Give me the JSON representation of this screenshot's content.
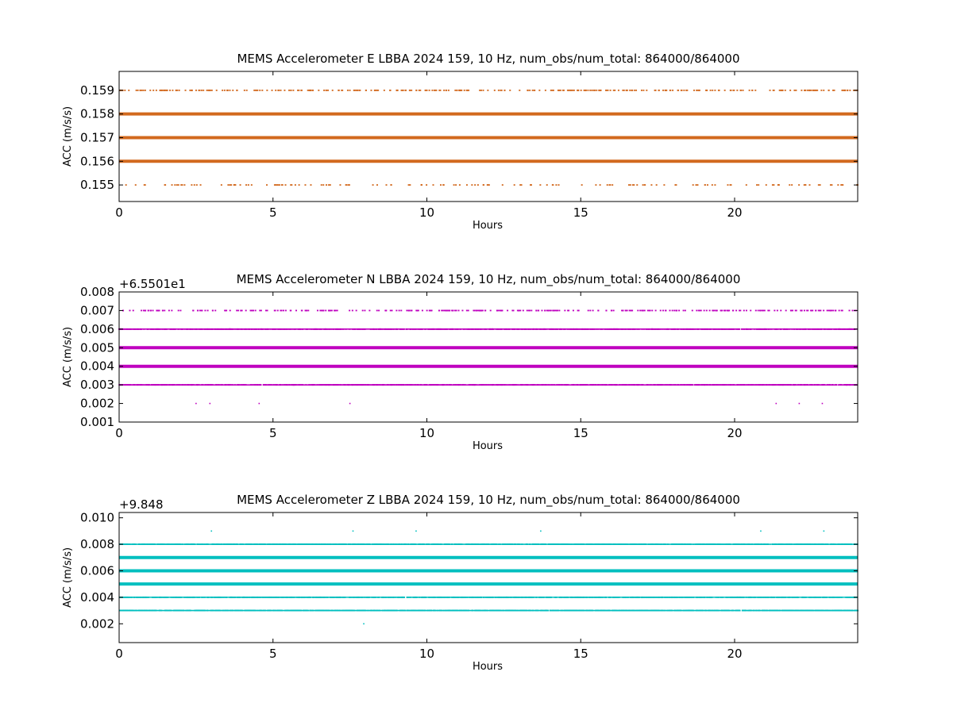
{
  "figure": {
    "background": "#ffffff"
  },
  "chart_data": [
    {
      "type": "scatter",
      "title": "MEMS Accelerometer E LBBA 2024 159, 10 Hz, num_obs/num_total: 864000/864000",
      "xlabel": "Hours",
      "ylabel": "ACC (m/s/s)",
      "offset_text": "",
      "xlim": [
        0,
        24
      ],
      "ylim": [
        0.1543,
        0.1598
      ],
      "xticks": [
        0,
        5,
        10,
        15,
        20
      ],
      "xtick_labels": [
        "0",
        "5",
        "10",
        "15",
        "20"
      ],
      "yticks": [
        0.155,
        0.156,
        0.157,
        0.158,
        0.159
      ],
      "ytick_labels": [
        "0.155",
        "0.156",
        "0.157",
        "0.158",
        "0.159"
      ],
      "color": "#d2691e",
      "grid": false,
      "series": [
        {
          "levels": [
            {
              "y": 0.159,
              "density": "sparse"
            },
            {
              "y": 0.158,
              "density": "solid"
            },
            {
              "y": 0.157,
              "density": "solid"
            },
            {
              "y": 0.156,
              "density": "solid"
            },
            {
              "y": 0.155,
              "density": "very-sparse"
            }
          ]
        }
      ]
    },
    {
      "type": "scatter",
      "title": "MEMS Accelerometer N LBBA 2024 159, 10 Hz, num_obs/num_total: 864000/864000",
      "xlabel": "Hours",
      "ylabel": "ACC (m/s/s)",
      "offset_text": "+6.5501e1",
      "xlim": [
        0,
        24
      ],
      "ylim": [
        0.001,
        0.008
      ],
      "xticks": [
        0,
        5,
        10,
        15,
        20
      ],
      "xtick_labels": [
        "0",
        "5",
        "10",
        "15",
        "20"
      ],
      "yticks": [
        0.001,
        0.002,
        0.003,
        0.004,
        0.005,
        0.006,
        0.007,
        0.008
      ],
      "ytick_labels": [
        "0.001",
        "0.002",
        "0.003",
        "0.004",
        "0.005",
        "0.006",
        "0.007",
        "0.008"
      ],
      "color": "#bf00bf",
      "grid": false,
      "series": [
        {
          "levels": [
            {
              "y": 0.007,
              "density": "sparse"
            },
            {
              "y": 0.006,
              "density": "medium"
            },
            {
              "y": 0.005,
              "density": "solid"
            },
            {
              "y": 0.004,
              "density": "solid"
            },
            {
              "y": 0.003,
              "density": "medium"
            },
            {
              "y": 0.002,
              "points_x": [
                2.5,
                2.95,
                4.55,
                7.5,
                21.35,
                22.1,
                22.85
              ]
            }
          ]
        }
      ]
    },
    {
      "type": "scatter",
      "title": "MEMS Accelerometer Z LBBA 2024 159, 10 Hz, num_obs/num_total: 864000/864000",
      "xlabel": "Hours",
      "ylabel": "ACC (m/s/s)",
      "offset_text": "+9.848",
      "xlim": [
        0,
        24
      ],
      "ylim": [
        0.00058,
        0.0104
      ],
      "xticks": [
        0,
        5,
        10,
        15,
        20
      ],
      "xtick_labels": [
        "0",
        "5",
        "10",
        "15",
        "20"
      ],
      "yticks": [
        0.002,
        0.004,
        0.006,
        0.008,
        0.01
      ],
      "ytick_labels": [
        "0.002",
        "0.004",
        "0.006",
        "0.008",
        "0.010"
      ],
      "color": "#00bfbf",
      "grid": false,
      "series": [
        {
          "levels": [
            {
              "y": 0.009,
              "points_x": [
                3.0,
                7.6,
                9.65,
                13.7,
                20.85,
                22.9
              ]
            },
            {
              "y": 0.008,
              "density": "medium"
            },
            {
              "y": 0.007,
              "density": "solid"
            },
            {
              "y": 0.006,
              "density": "solid"
            },
            {
              "y": 0.005,
              "density": "solid"
            },
            {
              "y": 0.004,
              "density": "medium"
            },
            {
              "y": 0.003,
              "density": "medium"
            },
            {
              "y": 0.002,
              "points_x": [
                7.95
              ]
            }
          ]
        }
      ]
    }
  ]
}
